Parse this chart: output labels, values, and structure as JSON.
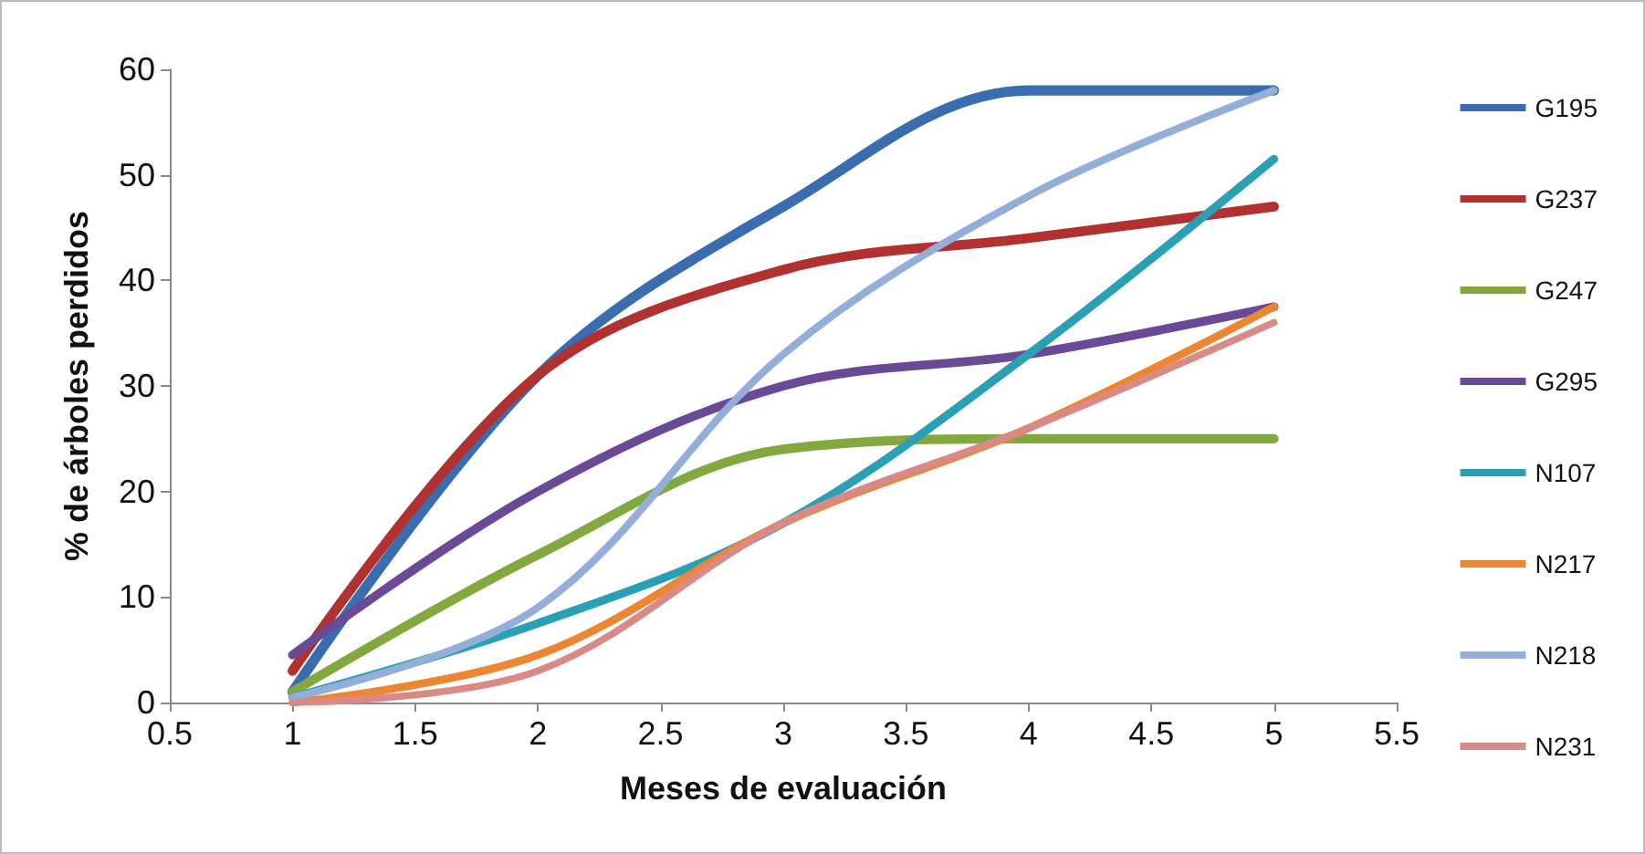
{
  "chart_data": {
    "type": "line",
    "xlabel": "Meses de evaluación",
    "ylabel": "% de árboles perdidos",
    "x": [
      1,
      2,
      3,
      4,
      5
    ],
    "series": [
      {
        "name": "G195",
        "color": "#3a6db0",
        "values": [
          1,
          31,
          47,
          58,
          58
        ]
      },
      {
        "name": "G237",
        "color": "#b0312f",
        "values": [
          3,
          31,
          41,
          44,
          47
        ]
      },
      {
        "name": "G247",
        "color": "#82a83f",
        "values": [
          1,
          14,
          24,
          25,
          25
        ]
      },
      {
        "name": "G295",
        "color": "#6a4a96",
        "values": [
          4.5,
          20,
          30,
          33,
          37.5
        ]
      },
      {
        "name": "N107",
        "color": "#2aa0b5",
        "values": [
          0.5,
          7.5,
          17,
          33,
          51.5
        ]
      },
      {
        "name": "N217",
        "color": "#ec8632",
        "values": [
          0,
          4.5,
          17,
          26,
          37.5
        ]
      },
      {
        "name": "N218",
        "color": "#93aed8",
        "values": [
          0.5,
          9,
          33,
          48,
          58
        ]
      },
      {
        "name": "N231",
        "color": "#d98a85",
        "values": [
          0,
          3,
          17,
          26,
          36
        ]
      }
    ],
    "xlim": [
      0.5,
      5.5
    ],
    "xticks": [
      0.5,
      1,
      1.5,
      2,
      2.5,
      3,
      3.5,
      4,
      4.5,
      5,
      5.5
    ],
    "ylim": [
      0,
      60
    ],
    "yticks": [
      0,
      10,
      20,
      30,
      40,
      50,
      60
    ],
    "grid": false,
    "legend": "right",
    "marker": "none",
    "line_style": "solid"
  }
}
